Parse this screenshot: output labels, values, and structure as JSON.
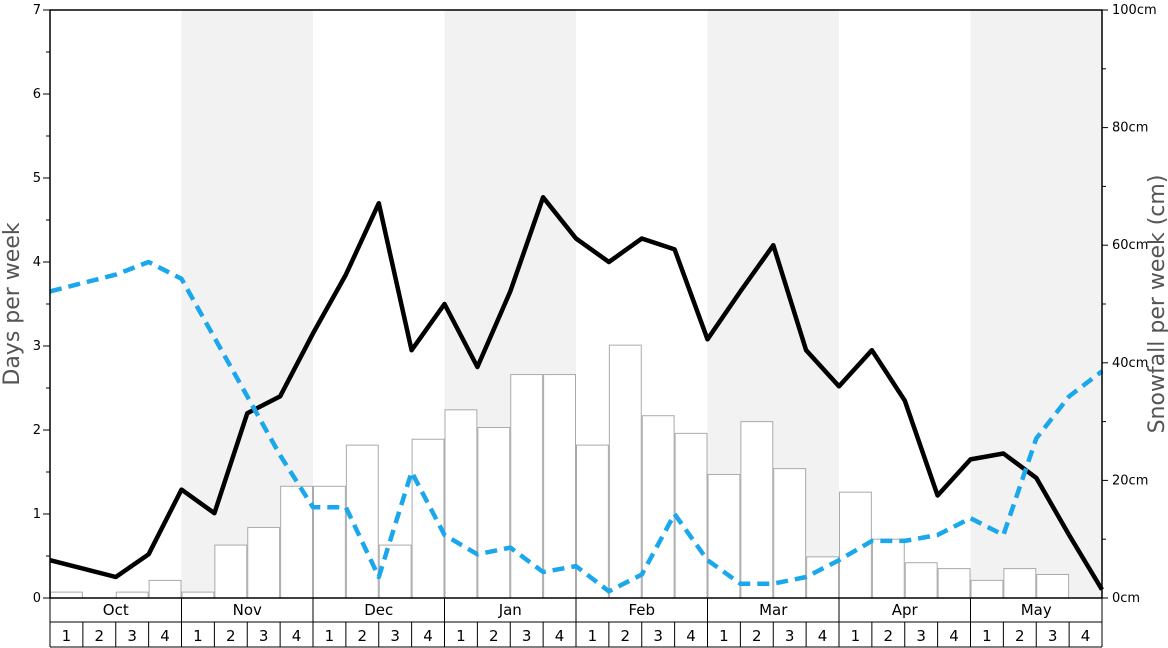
{
  "chart_data": {
    "type": "bar",
    "ylabel": "Days per week",
    "y2label": "Snowfall per week (cm)",
    "ylim": [
      0,
      7
    ],
    "y2lim": [
      0,
      100
    ],
    "yticks": [
      "0",
      "1",
      "2",
      "3",
      "4",
      "5",
      "6",
      "7"
    ],
    "y2ticks": [
      "0cm",
      "20cm",
      "40cm",
      "60cm",
      "80cm",
      "100cm"
    ],
    "months": [
      "Oct",
      "Nov",
      "Dec",
      "Jan",
      "Feb",
      "Mar",
      "Apr",
      "May"
    ],
    "weeks": [
      "1",
      "2",
      "3",
      "4"
    ],
    "grid": false,
    "colors": {
      "bars": "#ffffff",
      "bar_border": "#aaaaaa",
      "solid_line": "#000000",
      "dashed_line": "#1aa7ec",
      "band": "#f2f2f2"
    },
    "series": [
      {
        "kind": "bar",
        "axis": "right",
        "values": [
          1,
          0,
          1,
          3,
          1,
          9,
          12,
          19,
          19,
          26,
          9,
          27,
          32,
          29,
          38,
          38,
          26,
          43,
          31,
          28,
          21,
          30,
          22,
          7,
          18,
          10,
          6,
          5,
          3,
          5,
          4,
          0
        ]
      },
      {
        "kind": "line",
        "style": "solid",
        "axis": "left",
        "values": [
          0.45,
          0.35,
          0.25,
          0.52,
          1.29,
          1.01,
          2.2,
          2.4,
          3.15,
          3.85,
          4.7,
          2.95,
          3.5,
          2.75,
          3.65,
          4.77,
          4.28,
          4.0,
          4.28,
          4.15,
          3.08,
          3.65,
          4.2,
          2.95,
          2.52,
          2.95,
          2.35,
          1.22,
          1.65,
          1.72,
          1.43,
          0.75,
          0.1
        ]
      },
      {
        "kind": "line",
        "style": "dashed",
        "axis": "left",
        "values": [
          3.65,
          3.75,
          3.85,
          4.0,
          3.8,
          3.1,
          2.4,
          1.7,
          1.08,
          1.08,
          0.25,
          1.5,
          0.75,
          0.52,
          0.6,
          0.31,
          0.38,
          0.08,
          0.28,
          1.0,
          0.45,
          0.17,
          0.17,
          0.25,
          0.45,
          0.68,
          0.68,
          0.75,
          0.95,
          0.75,
          1.9,
          2.4,
          2.7
        ]
      }
    ]
  }
}
